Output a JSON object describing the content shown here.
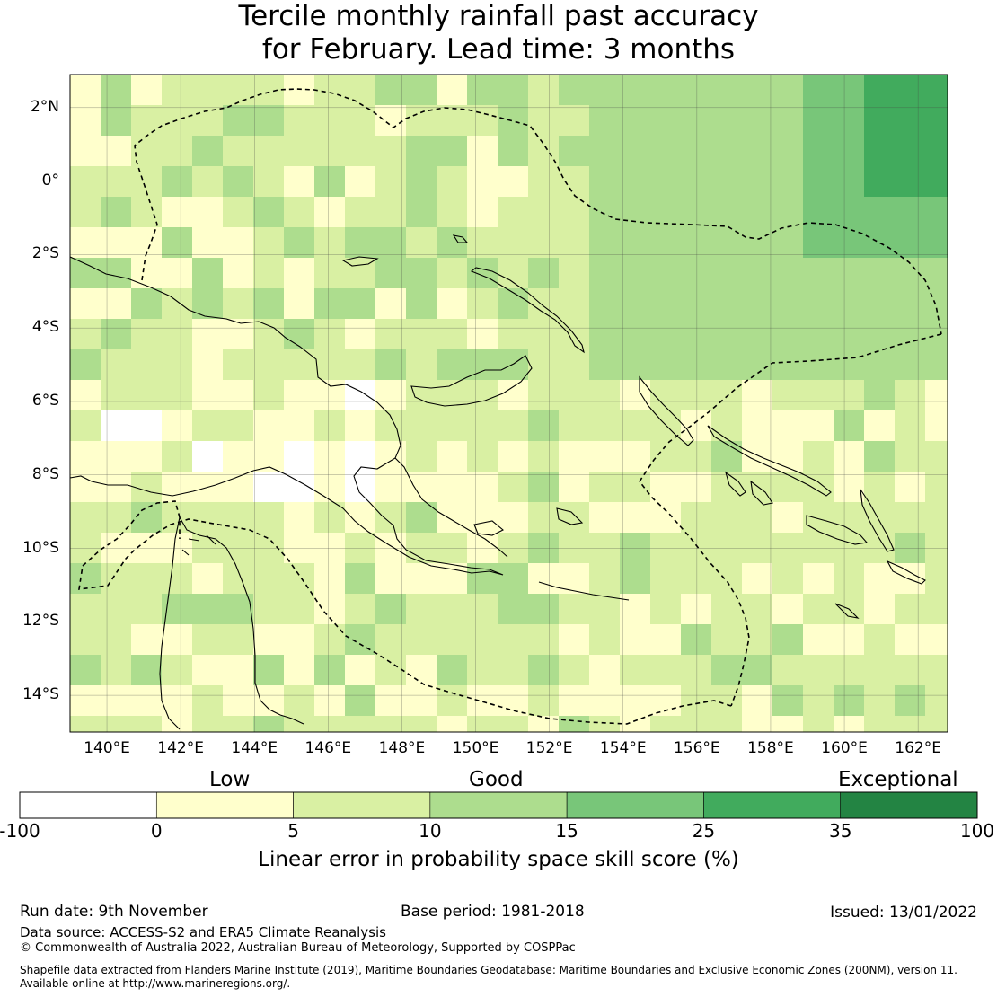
{
  "title": {
    "line1": "Tercile monthly rainfall past accuracy",
    "line2": "for February. Lead time: 3 months"
  },
  "map": {
    "lon_labels": [
      "140°E",
      "142°E",
      "144°E",
      "146°E",
      "148°E",
      "150°E",
      "152°E",
      "154°E",
      "156°E",
      "158°E",
      "160°E",
      "162°E"
    ],
    "lat_labels": [
      "2°N",
      "0°",
      "2°S",
      "4°S",
      "6°S",
      "8°S",
      "10°S",
      "12°S",
      "14°S"
    ],
    "lon_range": [
      139.0,
      162.8
    ],
    "lat_range": [
      -15.0,
      2.9
    ],
    "grid_resolution_deg": 0.8
  },
  "colorbar": {
    "categories": [
      "Low",
      "Good",
      "Exceptional"
    ],
    "ticks": [
      "-100",
      "0",
      "5",
      "10",
      "15",
      "25",
      "35",
      "100"
    ],
    "colors": [
      "#ffffff",
      "#ffffcc",
      "#d9f0a3",
      "#addd8e",
      "#78c679",
      "#41ab5d",
      "#238443"
    ],
    "label": "Linear error in probability space skill score (%)"
  },
  "footer": {
    "run_date": "Run date: 9th November",
    "base_period": "Base period: 1981-2018",
    "issued": "Issued: 13/01/2022",
    "data_source": "Data source: ACCESS-S2 and ERA5 Climate Reanalysis",
    "copyright": "© Commonwealth of Australia 2022, Australian Bureau of Meteorology, Supported by COSPPac",
    "shapefile_line1": "Shapefile data extracted from Flanders Marine Institute (2019), Maritime Boundaries Geodatabase: Maritime Boundaries and Exclusive Economic Zones (200NM), version 11.",
    "shapefile_line2": "Available online at http://www.marineregions.org/."
  }
}
